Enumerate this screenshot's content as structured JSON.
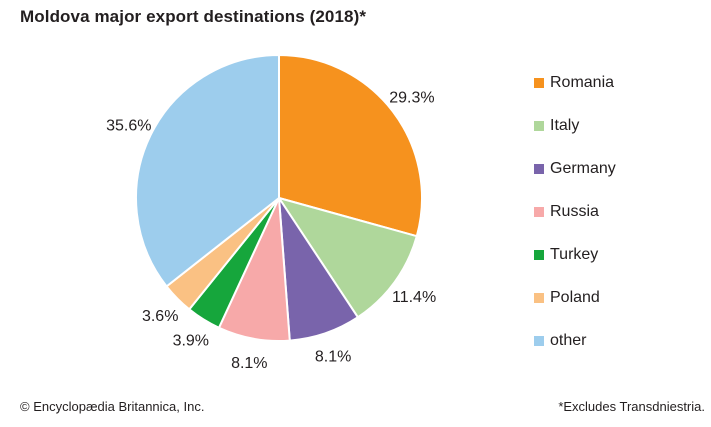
{
  "title": "Moldova major export destinations (2018)*",
  "footer": {
    "left": "© Encyclopædia Britannica, Inc.",
    "right": "*Excludes Transdniestria."
  },
  "chart_data": {
    "type": "pie",
    "title": "Moldova major export destinations (2018)*",
    "unit": "%",
    "start_angle_deg": 0,
    "direction": "clockwise",
    "legend_position": "right",
    "categories": [
      "Romania",
      "Italy",
      "Germany",
      "Russia",
      "Turkey",
      "Poland",
      "other"
    ],
    "values": [
      29.3,
      11.4,
      8.1,
      8.1,
      3.9,
      3.6,
      35.6
    ],
    "slice_labels": [
      "29.3%",
      "11.4%",
      "8.1%",
      "8.1%",
      "3.9%",
      "3.6%",
      "35.6%"
    ],
    "colors": [
      "#F6921E",
      "#AFD79B",
      "#7964AB",
      "#F7A9A9",
      "#16A63C",
      "#FAC183",
      "#9DCDED"
    ],
    "slice_border_color": "#FFFFFF",
    "label_color": "#231F20"
  }
}
